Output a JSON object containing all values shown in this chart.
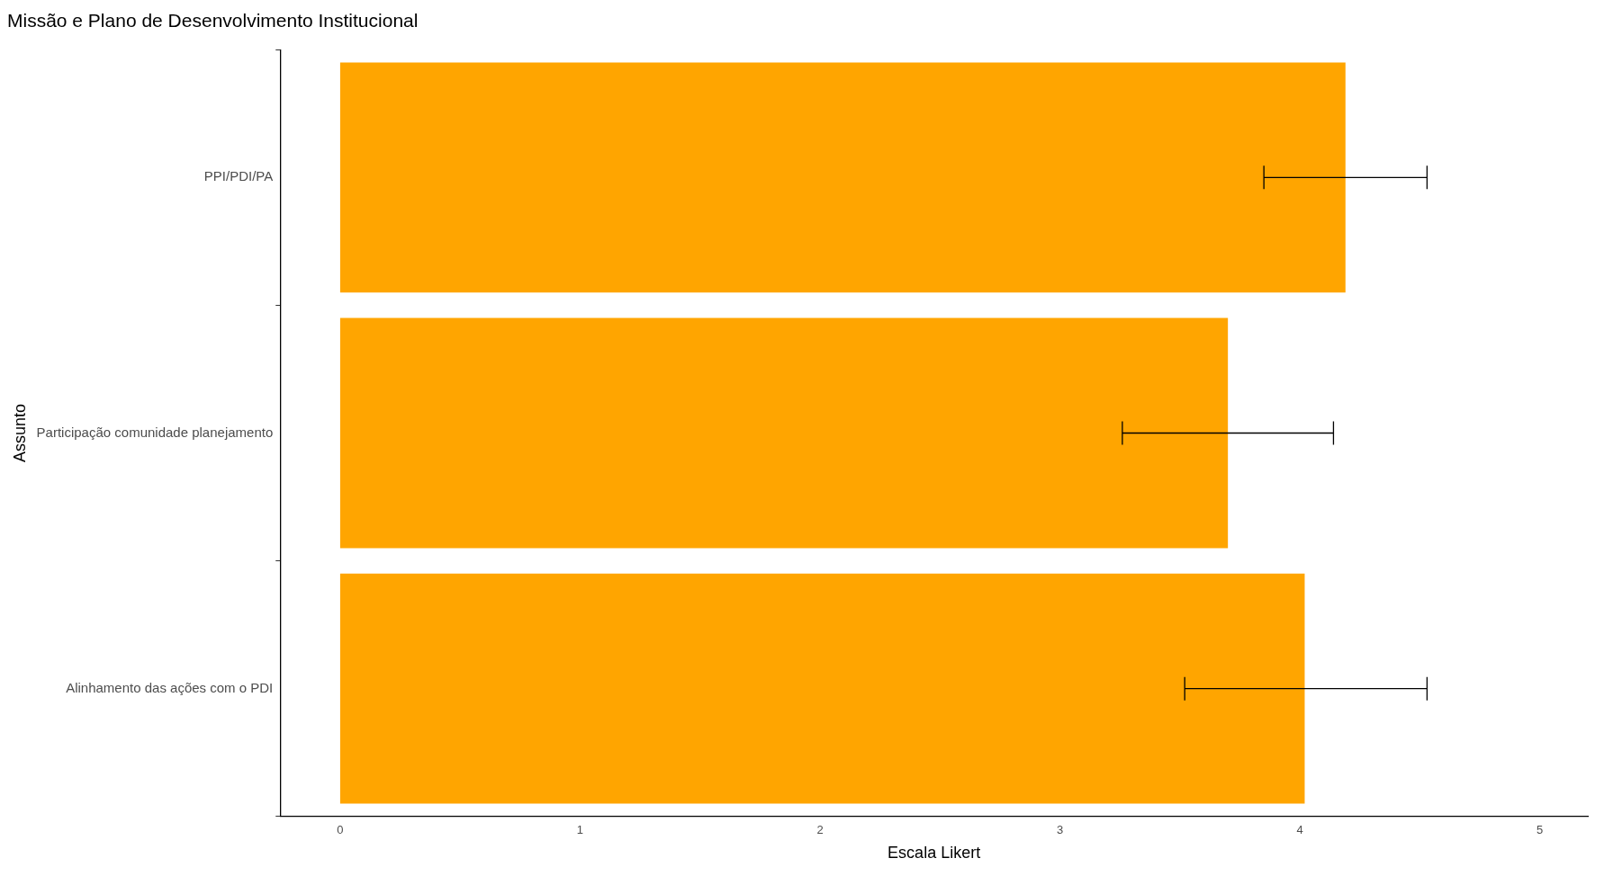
{
  "chart_data": {
    "type": "bar",
    "orientation": "horizontal",
    "title": "Missão e Plano de Desenvolvimento Institucional",
    "xlabel": "Escala Likert",
    "ylabel": "Assunto",
    "categories": [
      "PPI/PDI/PA",
      "Participação comunidade planejamento",
      "Alinhamento das ações com o PDI"
    ],
    "values": [
      4.19,
      3.7,
      4.02
    ],
    "errors": [
      [
        3.85,
        4.53
      ],
      [
        3.26,
        4.14
      ],
      [
        3.52,
        4.53
      ]
    ],
    "color": "#ffa500",
    "xlim": [
      -0.25,
      5.2
    ],
    "xticks": [
      0,
      1,
      2,
      3,
      4,
      5
    ],
    "grid": false,
    "legend": false
  }
}
